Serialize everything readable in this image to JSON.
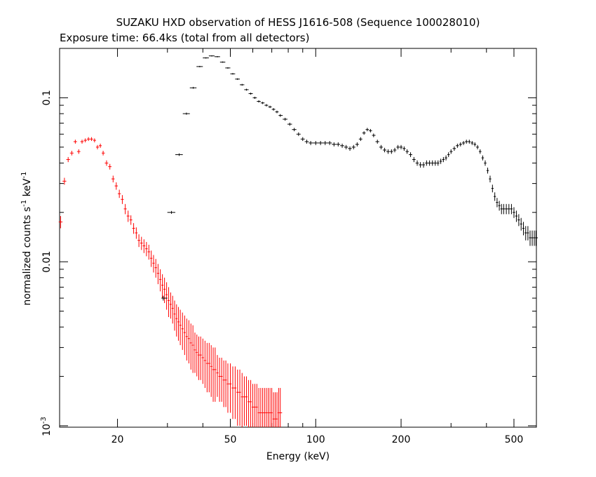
{
  "chart_data": {
    "type": "scatter",
    "title": "SUZAKU HXD observation of HESS J1616-508 (Sequence 100028010)",
    "subtitle": "Exposure time: 66.4ks (total from all detectors)",
    "xlabel": "Energy (keV)",
    "ylabel_main": "normalized counts s",
    "ylabel_sup1": "-1",
    "ylabel_mid": " keV",
    "ylabel_sup2": "-1",
    "xscale": "log",
    "yscale": "log",
    "xlim": [
      12.5,
      600
    ],
    "ylim": [
      0.00098,
      0.2
    ],
    "grid": false,
    "xticks": [
      {
        "value": 20,
        "label": "20"
      },
      {
        "value": 50,
        "label": "50"
      },
      {
        "value": 100,
        "label": "100"
      },
      {
        "value": 200,
        "label": "200"
      },
      {
        "value": 500,
        "label": "500"
      }
    ],
    "yticks": [
      {
        "value": 0.1,
        "label": "0.1"
      },
      {
        "value": 0.01,
        "label": "0.01"
      }
    ],
    "ytick_exp": {
      "value": 0.001,
      "base": "10",
      "exp": "-3"
    },
    "series": [
      {
        "color": "#ff0000",
        "points": [
          [
            12.6,
            0.0175,
            0.0015
          ],
          [
            13.0,
            0.031,
            0.0015
          ],
          [
            13.4,
            0.042,
            0.0015
          ],
          [
            13.8,
            0.046,
            0.0015
          ],
          [
            14.2,
            0.054,
            0.0015
          ],
          [
            14.6,
            0.047,
            0.0015
          ],
          [
            15.0,
            0.054,
            0.0015
          ],
          [
            15.4,
            0.055,
            0.0015
          ],
          [
            15.8,
            0.056,
            0.0015
          ],
          [
            16.2,
            0.056,
            0.0015
          ],
          [
            16.6,
            0.055,
            0.0015
          ],
          [
            17.0,
            0.05,
            0.0015
          ],
          [
            17.4,
            0.051,
            0.0015
          ],
          [
            17.8,
            0.046,
            0.0015
          ],
          [
            18.3,
            0.04,
            0.0015
          ],
          [
            18.8,
            0.038,
            0.0015
          ],
          [
            19.3,
            0.032,
            0.0015
          ],
          [
            19.8,
            0.029,
            0.0015
          ],
          [
            20.3,
            0.026,
            0.0015
          ],
          [
            20.8,
            0.024,
            0.0015
          ],
          [
            21.3,
            0.021,
            0.0015
          ],
          [
            21.8,
            0.019,
            0.0015
          ],
          [
            22.3,
            0.018,
            0.0012
          ],
          [
            22.8,
            0.016,
            0.0012
          ],
          [
            23.3,
            0.015,
            0.0012
          ],
          [
            23.8,
            0.0135,
            0.0012
          ],
          [
            24.3,
            0.013,
            0.0012
          ],
          [
            24.8,
            0.0125,
            0.0012
          ],
          [
            25.3,
            0.012,
            0.0012
          ],
          [
            25.8,
            0.0115,
            0.0012
          ],
          [
            26.3,
            0.0105,
            0.0012
          ],
          [
            26.8,
            0.0098,
            0.0012
          ],
          [
            27.3,
            0.0092,
            0.0012
          ],
          [
            27.8,
            0.0085,
            0.0012
          ],
          [
            28.3,
            0.0078,
            0.0012
          ],
          [
            28.8,
            0.0072,
            0.0012
          ],
          [
            29.3,
            0.0068,
            0.0012
          ],
          [
            29.8,
            0.0063,
            0.0012
          ],
          [
            30.3,
            0.0058,
            0.0012
          ],
          [
            30.8,
            0.0055,
            0.001
          ],
          [
            31.3,
            0.0052,
            0.001
          ],
          [
            31.8,
            0.0048,
            0.001
          ],
          [
            32.3,
            0.0045,
            0.001
          ],
          [
            32.8,
            0.0043,
            0.001
          ],
          [
            33.3,
            0.0041,
            0.001
          ],
          [
            33.9,
            0.0039,
            0.001
          ],
          [
            34.5,
            0.0037,
            0.001
          ],
          [
            35.1,
            0.0035,
            0.001
          ],
          [
            35.7,
            0.0034,
            0.001
          ],
          [
            36.3,
            0.0032,
            0.001
          ],
          [
            36.9,
            0.0031,
            0.001
          ],
          [
            37.5,
            0.0029,
            0.0008
          ],
          [
            38.1,
            0.0028,
            0.0008
          ],
          [
            38.7,
            0.0027,
            0.0008
          ],
          [
            39.3,
            0.0027,
            0.0008
          ],
          [
            40.0,
            0.0026,
            0.0008
          ],
          [
            40.7,
            0.0025,
            0.0008
          ],
          [
            41.4,
            0.0024,
            0.0008
          ],
          [
            42.1,
            0.0024,
            0.0008
          ],
          [
            42.8,
            0.0023,
            0.0008
          ],
          [
            43.5,
            0.0022,
            0.0008
          ],
          [
            44.2,
            0.0022,
            0.0008
          ],
          [
            45.0,
            0.0021,
            0.0006
          ],
          [
            45.8,
            0.002,
            0.0006
          ],
          [
            46.6,
            0.002,
            0.0006
          ],
          [
            47.4,
            0.0019,
            0.0006
          ],
          [
            48.2,
            0.0019,
            0.0006
          ],
          [
            49.0,
            0.0018,
            0.0006
          ],
          [
            50.0,
            0.0018,
            0.0006
          ],
          [
            51.0,
            0.0017,
            0.0006
          ],
          [
            52.0,
            0.0017,
            0.0006
          ],
          [
            53.0,
            0.0016,
            0.0006
          ],
          [
            54.0,
            0.0016,
            0.0006
          ],
          [
            55.0,
            0.0015,
            0.0006
          ],
          [
            56.0,
            0.0015,
            0.0005
          ],
          [
            57.0,
            0.0015,
            0.0005
          ],
          [
            58.0,
            0.0014,
            0.0005
          ],
          [
            59.0,
            0.0014,
            0.0005
          ],
          [
            60.0,
            0.0013,
            0.0005
          ],
          [
            61.0,
            0.0013,
            0.0005
          ],
          [
            62.0,
            0.0013,
            0.0005
          ],
          [
            63.0,
            0.0012,
            0.0005
          ],
          [
            64.0,
            0.0012,
            0.0005
          ],
          [
            65.0,
            0.0012,
            0.0005
          ],
          [
            66.0,
            0.0012,
            0.0005
          ],
          [
            67.0,
            0.0012,
            0.0005
          ],
          [
            68.0,
            0.0012,
            0.0005
          ],
          [
            69.0,
            0.0012,
            0.0005
          ],
          [
            70.0,
            0.0012,
            0.0005
          ],
          [
            71.0,
            0.0011,
            0.0005
          ],
          [
            72.0,
            0.0011,
            0.0005
          ],
          [
            73.0,
            0.0011,
            0.0005
          ],
          [
            74.0,
            0.0012,
            0.0005
          ],
          [
            75.0,
            0.0012,
            0.0005
          ]
        ]
      },
      {
        "color": "#000000",
        "points": [
          [
            29.0,
            0.006,
            0.0002
          ],
          [
            31.0,
            0.02,
            0.0004
          ],
          [
            33.0,
            0.045,
            0.0008
          ],
          [
            35.0,
            0.08,
            0.0012
          ],
          [
            37.0,
            0.115,
            0.0015
          ],
          [
            39.0,
            0.155,
            0.0015
          ],
          [
            41.0,
            0.175,
            0.0015
          ],
          [
            43.0,
            0.18,
            0.0015
          ],
          [
            45.0,
            0.178,
            0.0015
          ],
          [
            47.0,
            0.165,
            0.0015
          ],
          [
            49.0,
            0.152,
            0.0015
          ],
          [
            51.0,
            0.14,
            0.0015
          ],
          [
            53.0,
            0.13,
            0.0015
          ],
          [
            55.0,
            0.12,
            0.0015
          ],
          [
            57.0,
            0.112,
            0.0015
          ],
          [
            59.0,
            0.106,
            0.0015
          ],
          [
            61.0,
            0.1,
            0.0015
          ],
          [
            63.0,
            0.095,
            0.0015
          ],
          [
            65.0,
            0.093,
            0.0015
          ],
          [
            67.0,
            0.09,
            0.0015
          ],
          [
            69.0,
            0.088,
            0.0015
          ],
          [
            71.0,
            0.085,
            0.0015
          ],
          [
            73.0,
            0.082,
            0.0015
          ],
          [
            75.0,
            0.078,
            0.0015
          ],
          [
            78.0,
            0.074,
            0.0015
          ],
          [
            81.0,
            0.069,
            0.0015
          ],
          [
            84.0,
            0.064,
            0.0015
          ],
          [
            87.0,
            0.06,
            0.0015
          ],
          [
            90.0,
            0.056,
            0.0015
          ],
          [
            93.0,
            0.054,
            0.0015
          ],
          [
            96.0,
            0.053,
            0.0015
          ],
          [
            100.0,
            0.053,
            0.0015
          ],
          [
            104.0,
            0.053,
            0.0015
          ],
          [
            108.0,
            0.053,
            0.0015
          ],
          [
            112.0,
            0.053,
            0.0015
          ],
          [
            116.0,
            0.052,
            0.0015
          ],
          [
            120.0,
            0.052,
            0.0015
          ],
          [
            124.0,
            0.051,
            0.0015
          ],
          [
            128.0,
            0.05,
            0.0015
          ],
          [
            132.0,
            0.049,
            0.0015
          ],
          [
            136.0,
            0.05,
            0.0015
          ],
          [
            140.0,
            0.052,
            0.0015
          ],
          [
            144.0,
            0.056,
            0.0015
          ],
          [
            148.0,
            0.061,
            0.0015
          ],
          [
            152.0,
            0.064,
            0.0015
          ],
          [
            156.0,
            0.063,
            0.0015
          ],
          [
            160.0,
            0.059,
            0.0015
          ],
          [
            165.0,
            0.054,
            0.0015
          ],
          [
            170.0,
            0.05,
            0.0015
          ],
          [
            175.0,
            0.048,
            0.0015
          ],
          [
            180.0,
            0.047,
            0.0015
          ],
          [
            185.0,
            0.047,
            0.0015
          ],
          [
            190.0,
            0.048,
            0.0015
          ],
          [
            195.0,
            0.05,
            0.0015
          ],
          [
            200.0,
            0.05,
            0.0015
          ],
          [
            205.0,
            0.049,
            0.0015
          ],
          [
            210.0,
            0.047,
            0.0015
          ],
          [
            216.0,
            0.045,
            0.0015
          ],
          [
            222.0,
            0.042,
            0.0015
          ],
          [
            228.0,
            0.04,
            0.0015
          ],
          [
            234.0,
            0.039,
            0.0015
          ],
          [
            240.0,
            0.039,
            0.0015
          ],
          [
            246.0,
            0.04,
            0.0015
          ],
          [
            252.0,
            0.04,
            0.0015
          ],
          [
            258.0,
            0.04,
            0.0015
          ],
          [
            264.0,
            0.04,
            0.0015
          ],
          [
            270.0,
            0.04,
            0.0015
          ],
          [
            276.0,
            0.041,
            0.0015
          ],
          [
            282.0,
            0.042,
            0.0015
          ],
          [
            288.0,
            0.043,
            0.0015
          ],
          [
            294.0,
            0.045,
            0.0015
          ],
          [
            300.0,
            0.047,
            0.0015
          ],
          [
            308.0,
            0.049,
            0.0015
          ],
          [
            316.0,
            0.051,
            0.0015
          ],
          [
            324.0,
            0.052,
            0.0015
          ],
          [
            332.0,
            0.053,
            0.0015
          ],
          [
            340.0,
            0.054,
            0.0015
          ],
          [
            348.0,
            0.054,
            0.0015
          ],
          [
            356.0,
            0.053,
            0.0015
          ],
          [
            364.0,
            0.052,
            0.0015
          ],
          [
            372.0,
            0.05,
            0.0015
          ],
          [
            380.0,
            0.047,
            0.0015
          ],
          [
            388.0,
            0.043,
            0.0015
          ],
          [
            396.0,
            0.04,
            0.0015
          ],
          [
            404.0,
            0.036,
            0.0015
          ],
          [
            412.0,
            0.032,
            0.0015
          ],
          [
            420.0,
            0.028,
            0.0015
          ],
          [
            428.0,
            0.025,
            0.0015
          ],
          [
            436.0,
            0.023,
            0.0015
          ],
          [
            444.0,
            0.022,
            0.0015
          ],
          [
            452.0,
            0.021,
            0.0015
          ],
          [
            460.0,
            0.021,
            0.0015
          ],
          [
            470.0,
            0.021,
            0.0015
          ],
          [
            480.0,
            0.021,
            0.0015
          ],
          [
            490.0,
            0.021,
            0.0015
          ],
          [
            500.0,
            0.02,
            0.0015
          ],
          [
            510.0,
            0.019,
            0.0015
          ],
          [
            520.0,
            0.018,
            0.0015
          ],
          [
            530.0,
            0.017,
            0.0015
          ],
          [
            540.0,
            0.016,
            0.0015
          ],
          [
            550.0,
            0.015,
            0.0015
          ],
          [
            560.0,
            0.015,
            0.0015
          ],
          [
            570.0,
            0.014,
            0.0015
          ],
          [
            580.0,
            0.014,
            0.0015
          ],
          [
            590.0,
            0.014,
            0.0015
          ],
          [
            598.0,
            0.014,
            0.0015
          ]
        ]
      }
    ]
  }
}
